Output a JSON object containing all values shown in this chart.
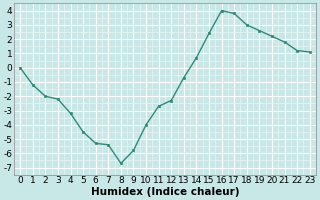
{
  "x": [
    0,
    1,
    2,
    3,
    4,
    5,
    6,
    7,
    8,
    9,
    10,
    11,
    12,
    13,
    14,
    15,
    16,
    17,
    18,
    19,
    20,
    21,
    22,
    23
  ],
  "y": [
    0.0,
    -1.2,
    -2.0,
    -2.2,
    -3.2,
    -4.5,
    -5.3,
    -5.4,
    -6.7,
    -5.8,
    -4.0,
    -2.7,
    -2.3,
    -0.7,
    0.7,
    2.4,
    4.0,
    3.8,
    3.0,
    2.6,
    2.2,
    1.8,
    1.2,
    1.1
  ],
  "line_color": "#2e8b77",
  "marker": "s",
  "marker_size": 2.0,
  "background_color": "#c8e8e8",
  "grid_major_color": "#ffffff",
  "grid_minor_color": "#e8f4f4",
  "xlabel": "Humidex (Indice chaleur)",
  "xlim": [
    -0.5,
    23.5
  ],
  "ylim": [
    -7.5,
    4.5
  ],
  "yticks": [
    -7,
    -6,
    -5,
    -4,
    -3,
    -2,
    -1,
    0,
    1,
    2,
    3,
    4
  ],
  "xticks": [
    0,
    1,
    2,
    3,
    4,
    5,
    6,
    7,
    8,
    9,
    10,
    11,
    12,
    13,
    14,
    15,
    16,
    17,
    18,
    19,
    20,
    21,
    22,
    23
  ],
  "font_size": 6.5,
  "xlabel_fontsize": 7.5,
  "linewidth": 1.0,
  "spine_color": "#888888"
}
